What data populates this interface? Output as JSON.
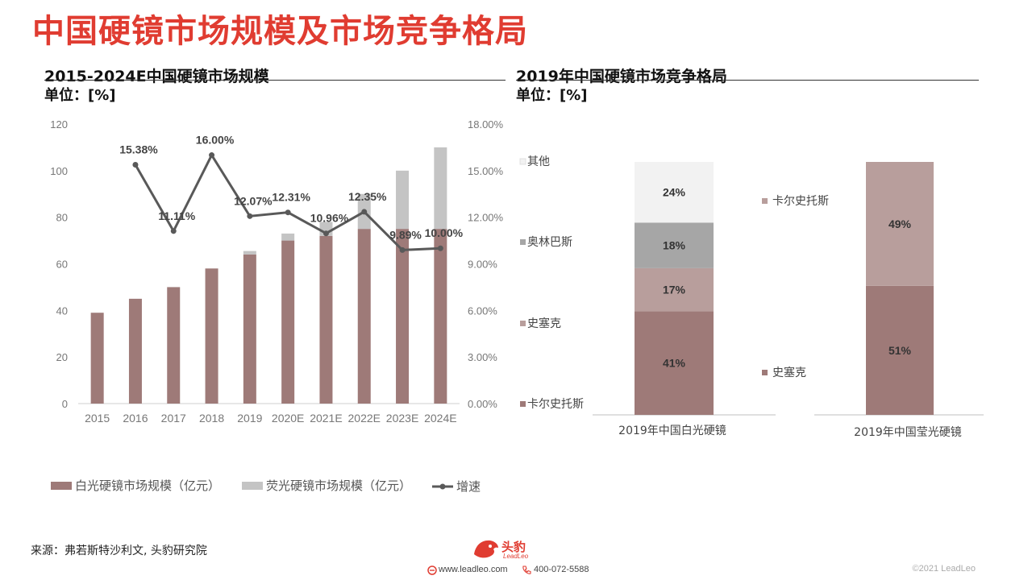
{
  "page": {
    "title": "中国硬镜市场规模及市场竞争格局",
    "source": "来源：弗若斯特沙利文, 头豹研究院",
    "copyright": "©2021 LeadLeo",
    "footer": {
      "website": "www.leadleo.com",
      "phone": "400-072-5588",
      "logo_text": "头豹",
      "logo_sub": "LeadLeo"
    },
    "colors": {
      "title_red": "#e03c31",
      "white_light": "#9e7a78",
      "fluorescent": "#c4c4c4",
      "growth_line": "#595959"
    }
  },
  "left_panel": {
    "title": "2015-2024E中国硬镜市场规模",
    "unit": "单位：[%]"
  },
  "right_panel": {
    "title": "2019年中国硬镜市场竞争格局",
    "unit": "单位：[%]"
  },
  "chart_data": [
    {
      "type": "bar",
      "stacked": true,
      "categories": [
        "2015",
        "2016",
        "2017",
        "2018",
        "2019",
        "2020E",
        "2021E",
        "2022E",
        "2023E",
        "2024E"
      ],
      "series": [
        {
          "name": "白光硬镜市场规模（亿元）",
          "type": "bar",
          "axis": "left",
          "color": "#9e7a78",
          "values": [
            39,
            45,
            50,
            58,
            64,
            70,
            72,
            75,
            75,
            75
          ]
        },
        {
          "name": "荧光硬镜市场规模（亿元）",
          "type": "bar",
          "axis": "left",
          "color": "#c4c4c4",
          "values": [
            0,
            0,
            0,
            0,
            1.5,
            3,
            6,
            15,
            25,
            35
          ]
        },
        {
          "name": "增速",
          "type": "line",
          "axis": "right",
          "color": "#595959",
          "values": [
            null,
            15.38,
            11.11,
            16.0,
            12.07,
            12.31,
            10.96,
            12.35,
            9.89,
            10.0
          ],
          "labels": [
            "",
            "15.38%",
            "11.11%",
            "16.00%",
            "12.07%",
            "12.31%",
            "10.96%",
            "12.35%",
            "9.89%",
            "10.00%"
          ]
        }
      ],
      "ylim_left": [
        0,
        120
      ],
      "yticks_left": [
        "0",
        "20",
        "40",
        "60",
        "80",
        "100",
        "120"
      ],
      "ylim_right": [
        0,
        18
      ],
      "yticks_right": [
        "0.00%",
        "3.00%",
        "6.00%",
        "9.00%",
        "12.00%",
        "15.00%",
        "18.00%"
      ],
      "legend": "bottom",
      "grid": false
    },
    {
      "type": "bar",
      "stacked": true,
      "percent": true,
      "categories": [
        "2019年中国白光硬镜",
        "2019年中国莹光硬镜"
      ],
      "bars": [
        {
          "segments": [
            {
              "name": "卡尔史托斯",
              "value": 41,
              "label": "41%",
              "color": "#9e7a78"
            },
            {
              "name": "史塞克",
              "value": 17,
              "label": "17%",
              "color": "#b89e9c"
            },
            {
              "name": "奥林巴斯",
              "value": 18,
              "label": "18%",
              "color": "#a6a6a6"
            },
            {
              "name": "其他",
              "value": 24,
              "label": "24%",
              "color": "#f2f2f2"
            }
          ]
        },
        {
          "segments": [
            {
              "name": "史塞克",
              "value": 51,
              "label": "51%",
              "color": "#9e7a78"
            },
            {
              "name": "卡尔史托斯",
              "value": 49,
              "label": "49%",
              "color": "#b89e9c"
            }
          ]
        }
      ],
      "legend": "side"
    }
  ]
}
